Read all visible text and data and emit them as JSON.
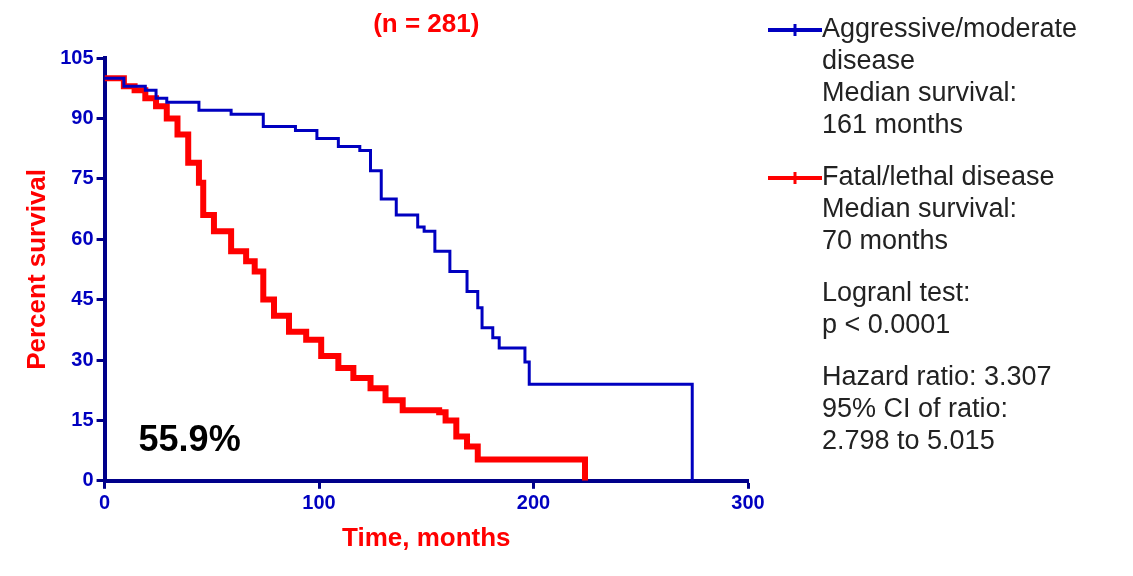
{
  "chart_data": {
    "type": "step",
    "title": "(n = 281)",
    "xlabel": "Time, months",
    "ylabel": "Percent survival",
    "xlim": [
      0,
      300
    ],
    "xticks": [
      0,
      100,
      200,
      300
    ],
    "ylim": [
      0,
      105
    ],
    "yticks": [
      0,
      15,
      30,
      45,
      60,
      75,
      90,
      105
    ],
    "grid": false,
    "legend": "right",
    "line_style": "solid",
    "series": [
      {
        "name": "Aggressive/moderate disease",
        "color": "#0000c0",
        "x": [
          0,
          9,
          19,
          24,
          29,
          44,
          59,
          74,
          89,
          99,
          109,
          119,
          124,
          129,
          136,
          146,
          149,
          154,
          161,
          169,
          174,
          176,
          181,
          184,
          195,
          196,
          198,
          274,
          274
        ],
        "values": [
          100,
          98,
          97,
          95,
          94,
          92,
          91,
          88,
          87,
          85,
          83,
          82,
          77,
          70,
          66,
          63,
          62,
          57,
          52,
          47,
          43,
          38,
          35.5,
          33,
          33,
          29.5,
          24,
          24,
          0
        ]
      },
      {
        "name": "Fatal/lethal disease",
        "color": "#ff0000",
        "x": [
          0,
          9,
          14,
          19,
          24,
          29,
          34,
          39,
          44,
          46,
          51,
          59,
          66,
          70,
          74,
          79,
          86,
          94,
          101,
          109,
          116,
          124,
          131,
          139,
          156,
          159,
          164,
          169,
          174,
          224,
          224
        ],
        "values": [
          100,
          98,
          97,
          95,
          93,
          90,
          86,
          79,
          74,
          66,
          62,
          57,
          54.5,
          52,
          45,
          41,
          37,
          35,
          31,
          28,
          25.5,
          23,
          20,
          17.5,
          17,
          15,
          11,
          8.5,
          5.3,
          5.3,
          0
        ]
      }
    ],
    "annotations": [
      "Median survival:\n161 months",
      "Median survival:\n70 months",
      "Logranl test:\np < 0.0001",
      "Hazard ratio: 3.307\n95% CI of ratio:\n2.798 to 5.015",
      "55.9%"
    ]
  }
}
